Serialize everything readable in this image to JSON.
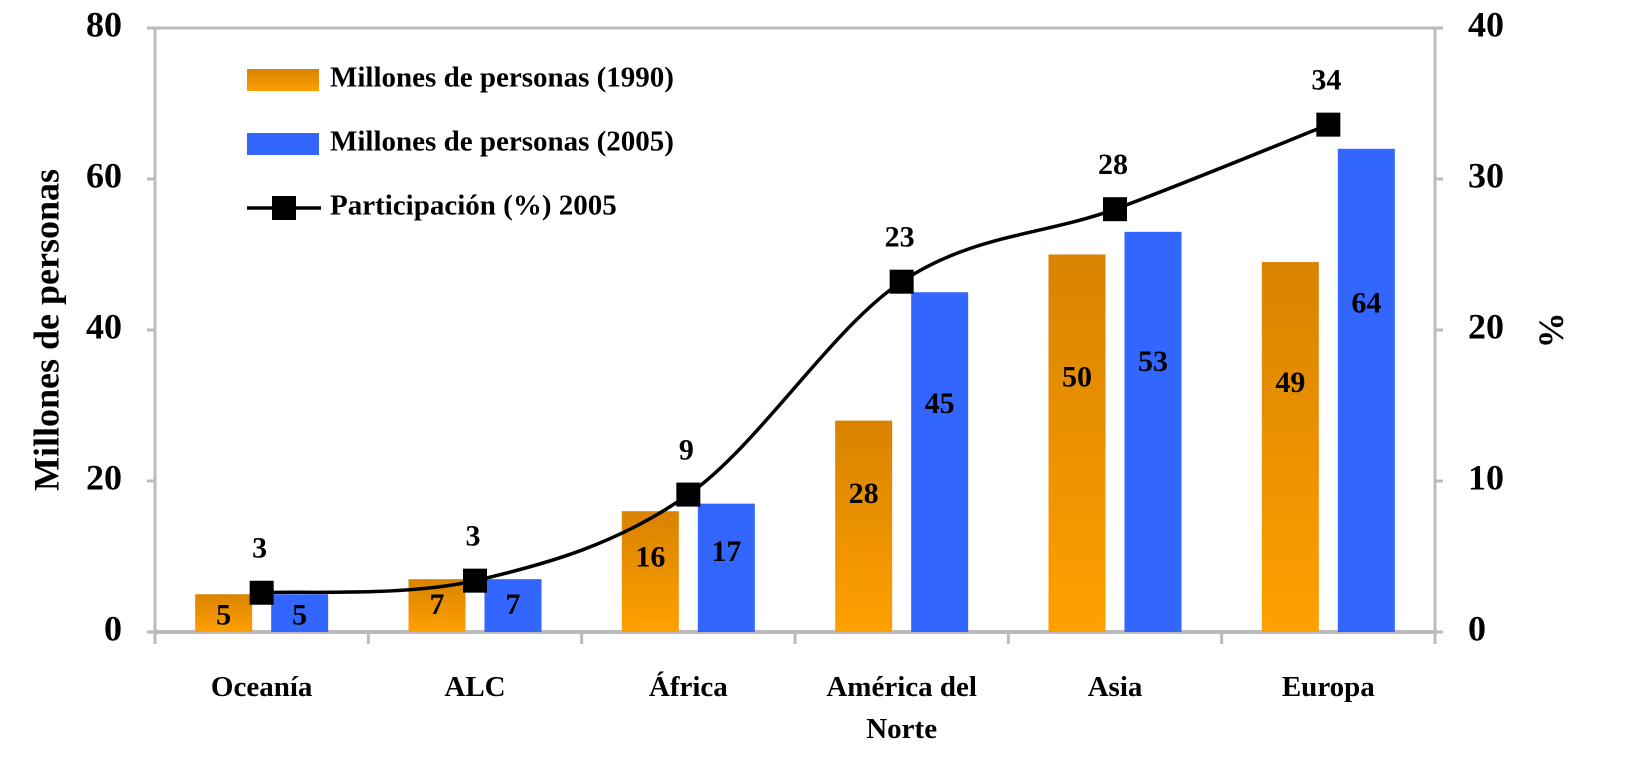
{
  "chart_data": {
    "type": "bar_line",
    "categories": [
      "Oceanía",
      "ALC",
      "África",
      "América del Norte",
      "Asia",
      "Europa"
    ],
    "y_axis_label": "Millones de personas",
    "y2_axis_label": "%",
    "ylim": [
      0,
      80
    ],
    "yticks": [
      0,
      20,
      40,
      60,
      80
    ],
    "y2lim": [
      0,
      40
    ],
    "y2ticks": [
      0,
      10,
      20,
      30,
      40
    ],
    "series": [
      {
        "name": "Millones de personas (1990)",
        "type": "bar",
        "color": "#f59a00",
        "values": [
          5,
          7,
          16,
          28,
          50,
          49
        ]
      },
      {
        "name": "Millones de personas (2005)",
        "type": "bar",
        "color": "#3366ff",
        "values": [
          5,
          7,
          17,
          45,
          53,
          64
        ]
      },
      {
        "name": "Participación (%) 2005",
        "type": "line",
        "axis": "y2",
        "color": "#000000",
        "values": [
          2.6,
          3.4,
          9.1,
          23.2,
          28,
          33.6
        ],
        "value_labels": [
          "3",
          "3",
          "9",
          "23",
          "28",
          "34"
        ]
      }
    ]
  }
}
